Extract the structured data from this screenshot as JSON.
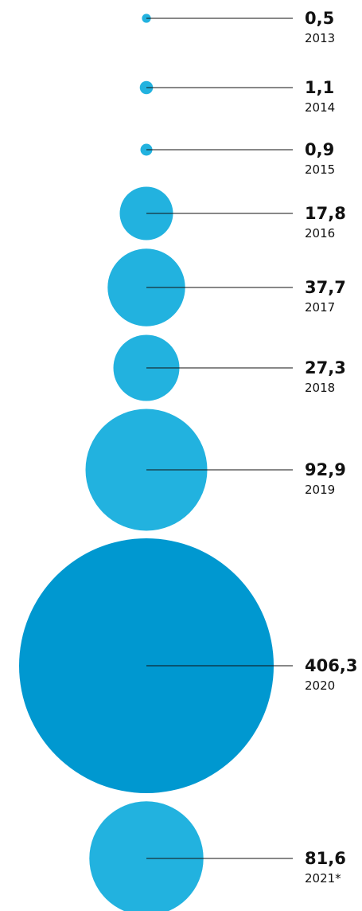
{
  "chart_data": {
    "type": "bubble",
    "categories": [
      "2013",
      "2014",
      "2015",
      "2016",
      "2017",
      "2018",
      "2019",
      "2020",
      "2021*"
    ],
    "values_display": [
      "0,5",
      "1,1",
      "0,9",
      "17,8",
      "37,7",
      "27,3",
      "92,9",
      "406,3",
      "81,6"
    ],
    "values": [
      0.5,
      1.1,
      0.9,
      17.8,
      37.7,
      27.3,
      92.9,
      406.3,
      81.6
    ],
    "highlight_index": 7,
    "colors": {
      "bubble": "#22b2df",
      "highlight": "#0098d0",
      "line": "#111111",
      "text": "#111111"
    }
  }
}
